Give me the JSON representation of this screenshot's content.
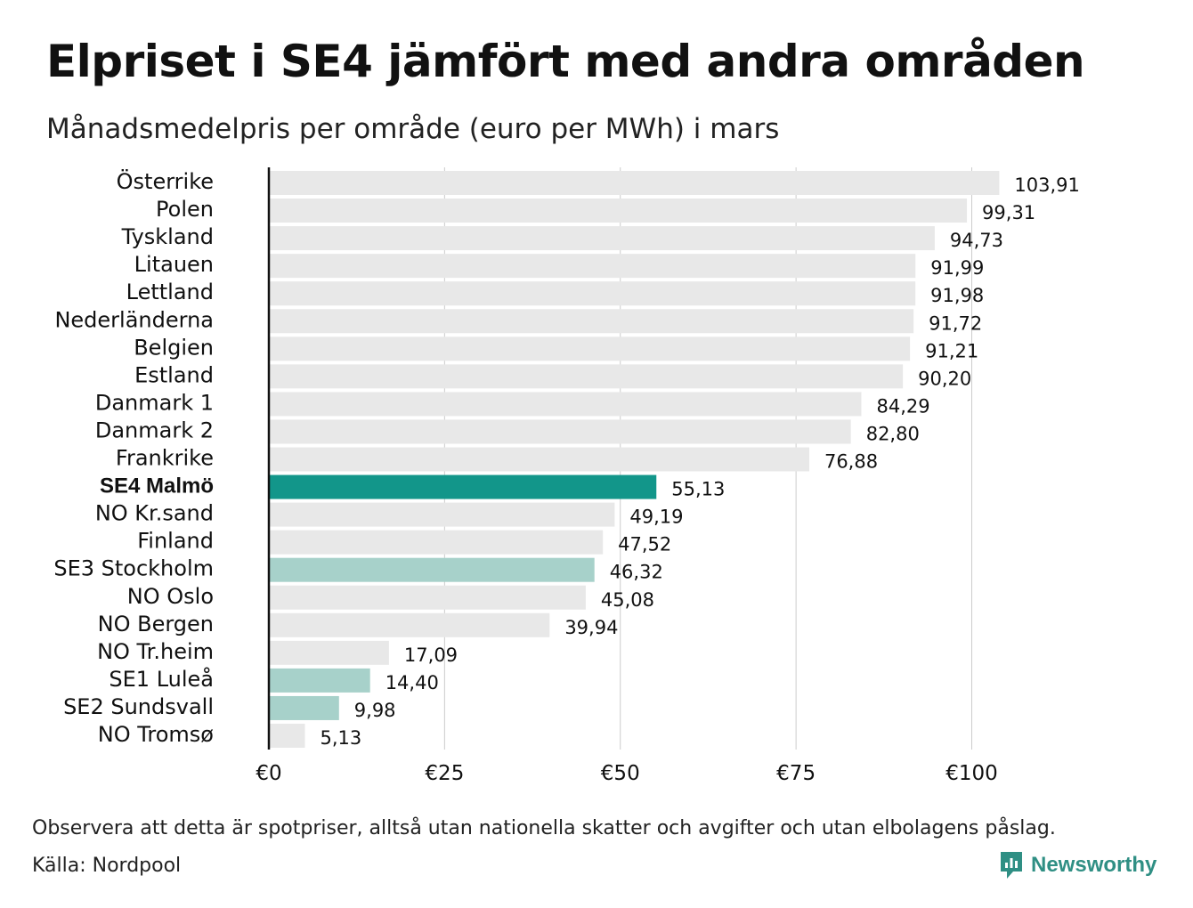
{
  "header": {
    "title": "Elpriset i SE4 jämfört med andra områden",
    "subtitle": "Månadsmedelpris per område (euro per MWh) i mars"
  },
  "footer": {
    "note": "Observera att detta är spotpriser, alltså utan nationella skatter och avgifter och utan elbolagens påslag.",
    "source": "Källa: Nordpool",
    "brand": "Newsworthy"
  },
  "colors": {
    "bar_default": "#e8e8e8",
    "bar_highlight": "#12968a",
    "bar_se": "#a7d1ca",
    "grid": "#cccccc",
    "axis": "#111111",
    "brand": "#2f8f84"
  },
  "chart_data": {
    "type": "bar",
    "orientation": "horizontal",
    "xlim": [
      0,
      110
    ],
    "ticks": [
      0,
      25,
      50,
      75,
      100
    ],
    "tick_labels": [
      "€0",
      "€25",
      "€50",
      "€75",
      "€100"
    ],
    "grid": true,
    "categories": [
      "Österrike",
      "Polen",
      "Tyskland",
      "Litauen",
      "Lettland",
      "Nederländerna",
      "Belgien",
      "Estland",
      "Danmark  1",
      "Danmark  2",
      "Frankrike",
      "SE4 Malmö",
      "NO Kr.sand",
      "Finland",
      "SE3  Stockholm",
      "NO Oslo",
      "NO Bergen",
      "NO Tr.heim",
      "SE1  Luleå",
      "SE2  Sundsvall",
      "NO Tromsø"
    ],
    "values": [
      103.91,
      99.31,
      94.73,
      91.99,
      91.98,
      91.72,
      91.21,
      90.2,
      84.29,
      82.8,
      76.88,
      55.13,
      49.19,
      47.52,
      46.32,
      45.08,
      39.94,
      17.09,
      14.4,
      9.98,
      5.13
    ],
    "value_labels": [
      "103,91",
      "99,31",
      "94,73",
      "91,99",
      "91,98",
      "91,72",
      "91,21",
      "90,20",
      "84,29",
      "82,80",
      "76,88",
      "55,13",
      "49,19",
      "47,52",
      "46,32",
      "45,08",
      "39,94",
      "17,09",
      "14,40",
      "9,98",
      "5,13"
    ],
    "highlight": [
      "default",
      "default",
      "default",
      "default",
      "default",
      "default",
      "default",
      "default",
      "default",
      "default",
      "default",
      "primary",
      "default",
      "default",
      "secondary",
      "default",
      "default",
      "default",
      "secondary",
      "secondary",
      "default"
    ]
  }
}
